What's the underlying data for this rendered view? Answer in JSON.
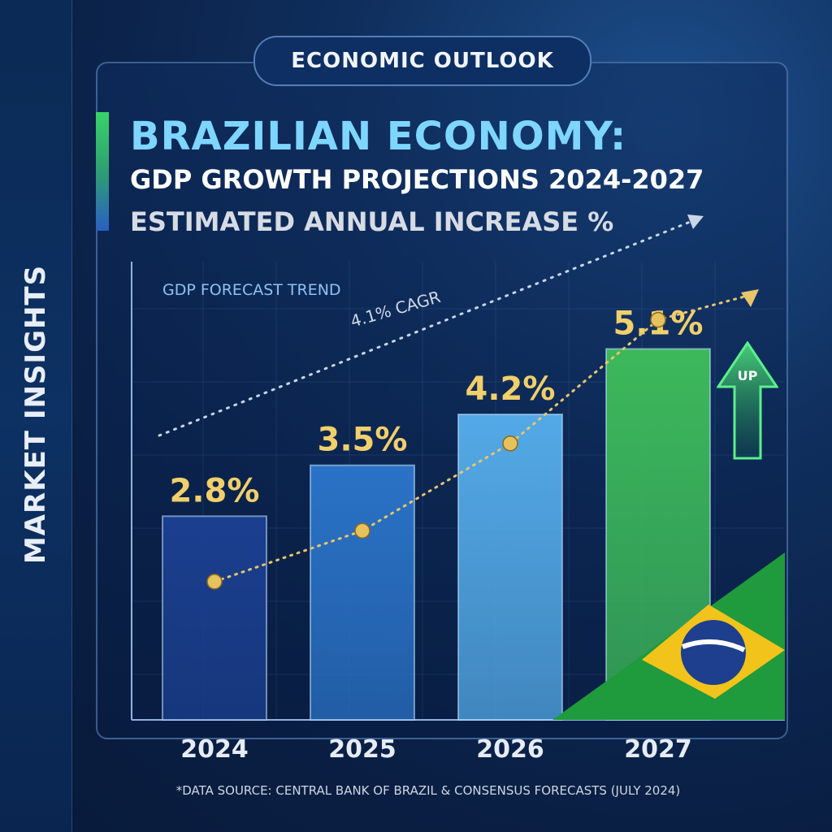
{
  "side_label": "MARKET INSIGHTS",
  "kicker": "ECONOMIC OUTLOOK",
  "title": "BRAZILIAN ECONOMY:",
  "subtitle": "GDP GROWTH PROJECTIONS 2024-2027",
  "subtitle2": "ESTIMATED ANNUAL INCREASE %",
  "trend_label": "GDP FORECAST TREND",
  "cagr_label": "4.1% CAGR",
  "up_label": "UP",
  "source": "*DATA SOURCE: CENTRAL BANK OF BRAZIL & CONSENSUS FORECASTS (JULY 2024)",
  "colors": {
    "accent_title": "#7ed6ff",
    "value_label": "#f1cf6a",
    "trend_dots": "#e8c56a",
    "bar_2027": "#2fb354"
  },
  "icons": [
    "up-arrow-icon",
    "brazil-flag-icon"
  ],
  "chart_data": {
    "type": "bar",
    "categories": [
      "2024",
      "2025",
      "2026",
      "2027"
    ],
    "values": [
      2.8,
      3.5,
      4.2,
      5.1
    ],
    "value_labels": [
      "2.8%",
      "3.5%",
      "4.2%",
      "5.1%"
    ],
    "bar_colors": [
      "#1b3f8f",
      "#2a72c6",
      "#53a9e6",
      "#3cb85a"
    ],
    "ylim": [
      0,
      6.3
    ],
    "grid": true,
    "trend_line": {
      "type": "dotted",
      "values": [
        1.9,
        2.6,
        3.8,
        5.5
      ]
    }
  }
}
